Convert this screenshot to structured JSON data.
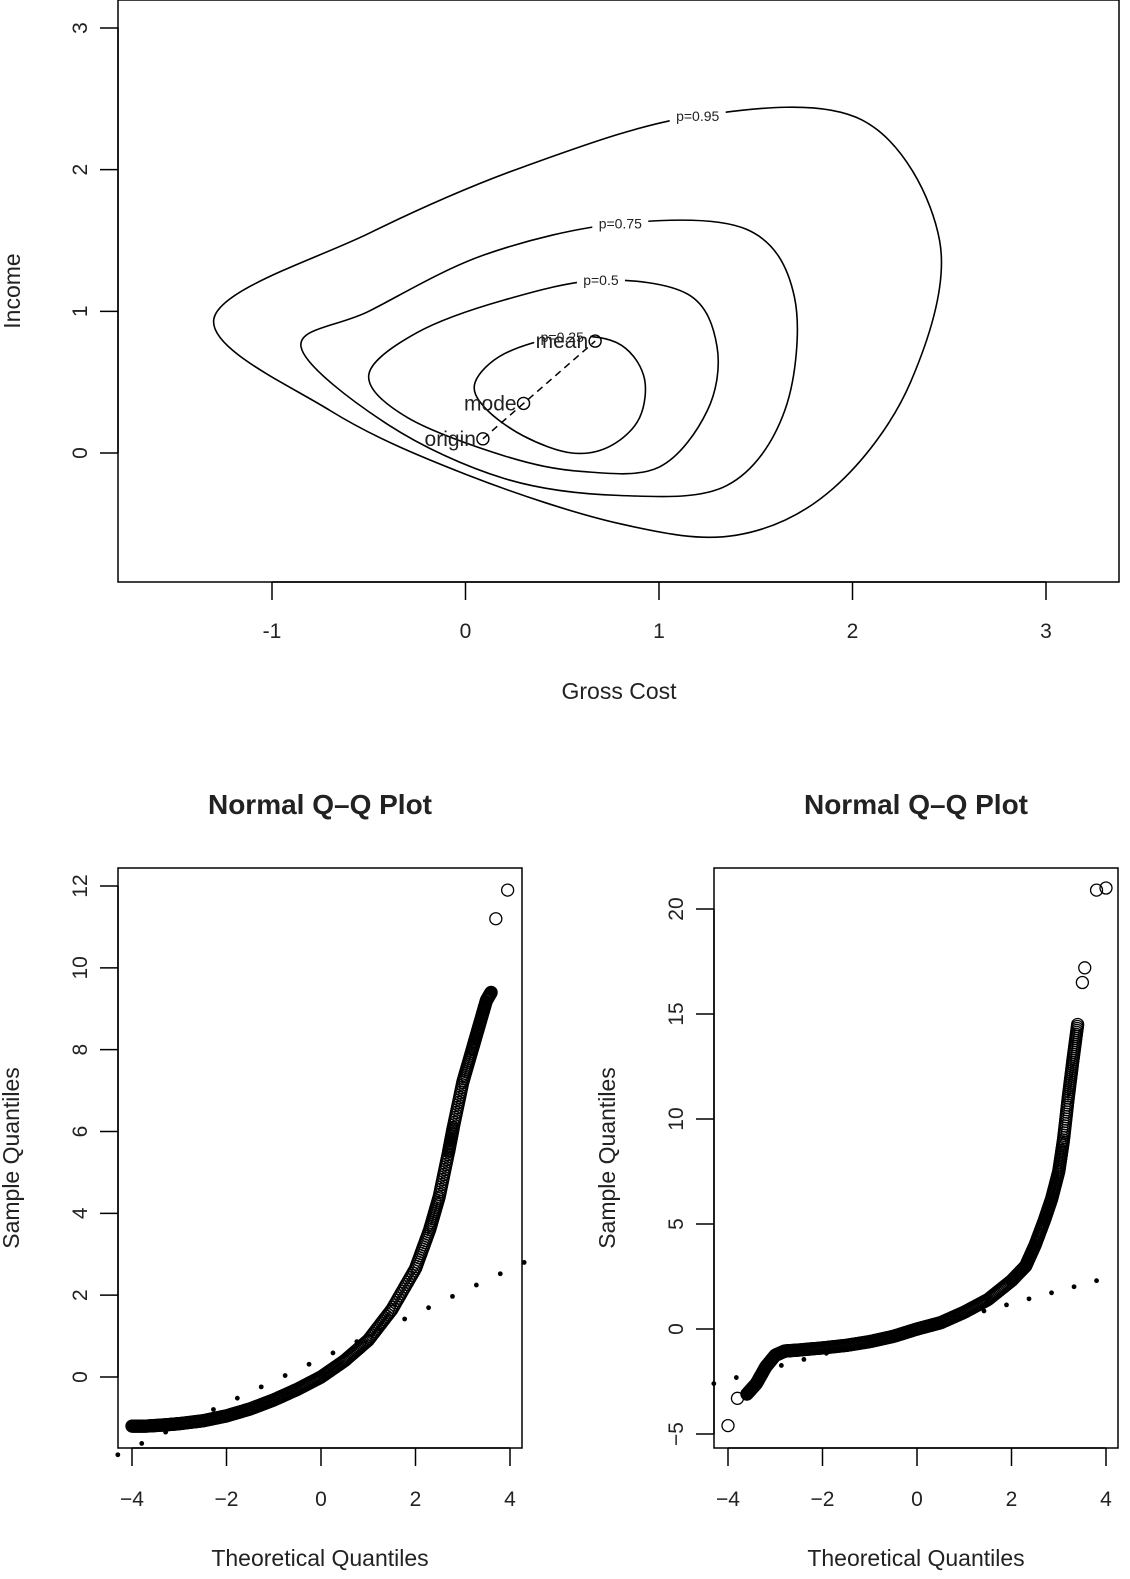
{
  "chart_data": [
    {
      "type": "contour",
      "title": "",
      "xlabel": "Gross Cost",
      "ylabel": "Income",
      "xlim": [
        -1.8,
        3.4
      ],
      "ylim": [
        -0.9,
        3.2
      ],
      "xticks": [
        "-1",
        "0",
        "1",
        "2",
        "3"
      ],
      "yticks": [
        "0",
        "1",
        "2",
        "3"
      ],
      "contours": [
        {
          "label": "p=0.25",
          "points": [
            [
              0.05,
              0.5
            ],
            [
              0.2,
              0.7
            ],
            [
              0.5,
              0.82
            ],
            [
              0.78,
              0.78
            ],
            [
              0.92,
              0.55
            ],
            [
              0.9,
              0.25
            ],
            [
              0.75,
              0.05
            ],
            [
              0.55,
              0.0
            ],
            [
              0.3,
              0.12
            ],
            [
              0.1,
              0.32
            ]
          ]
        },
        {
          "label": "p=0.5",
          "points": [
            [
              -0.5,
              0.55
            ],
            [
              -0.25,
              0.85
            ],
            [
              0.2,
              1.08
            ],
            [
              0.7,
              1.22
            ],
            [
              1.15,
              1.12
            ],
            [
              1.3,
              0.75
            ],
            [
              1.25,
              0.3
            ],
            [
              1.0,
              -0.1
            ],
            [
              0.6,
              -0.13
            ],
            [
              0.2,
              -0.02
            ],
            [
              -0.3,
              0.25
            ]
          ]
        },
        {
          "label": "p=0.75",
          "points": [
            [
              -0.85,
              0.75
            ],
            [
              -0.5,
              1.0
            ],
            [
              0.1,
              1.4
            ],
            [
              0.8,
              1.62
            ],
            [
              1.45,
              1.58
            ],
            [
              1.7,
              1.1
            ],
            [
              1.65,
              0.3
            ],
            [
              1.35,
              -0.23
            ],
            [
              0.8,
              -0.3
            ],
            [
              0.2,
              -0.18
            ],
            [
              -0.4,
              0.2
            ]
          ]
        },
        {
          "label": "p=0.95",
          "points": [
            [
              -1.3,
              0.95
            ],
            [
              -0.5,
              1.55
            ],
            [
              0.3,
              2.02
            ],
            [
              1.2,
              2.38
            ],
            [
              2.05,
              2.35
            ],
            [
              2.45,
              1.5
            ],
            [
              2.3,
              0.5
            ],
            [
              1.9,
              -0.25
            ],
            [
              1.4,
              -0.58
            ],
            [
              0.8,
              -0.5
            ],
            [
              0.0,
              -0.15
            ],
            [
              -0.7,
              0.3
            ]
          ]
        }
      ],
      "points": [
        {
          "label": "mean",
          "x": 0.67,
          "y": 0.79
        },
        {
          "label": "mode",
          "x": 0.3,
          "y": 0.35
        },
        {
          "label": "origin",
          "x": 0.09,
          "y": 0.1
        }
      ],
      "segment": {
        "from": "origin",
        "to": "mean",
        "style": "dashed"
      }
    },
    {
      "type": "scatter",
      "title": "Normal Q–Q Plot",
      "xlabel": "Theoretical Quantiles",
      "ylabel": "Sample Quantiles",
      "xlim": [
        -4.4,
        4.4
      ],
      "ylim": [
        -1.7,
        12.5
      ],
      "xticks": [
        "−4",
        "−2",
        "0",
        "2",
        "4"
      ],
      "yticks": [
        "0",
        "2",
        "4",
        "6",
        "8",
        "10",
        "12"
      ],
      "qq_curve": [
        [
          -4.0,
          -1.2
        ],
        [
          -3.7,
          -1.2
        ],
        [
          -3.3,
          -1.17
        ],
        [
          -3.0,
          -1.14
        ],
        [
          -2.5,
          -1.07
        ],
        [
          -2.0,
          -0.95
        ],
        [
          -1.5,
          -0.78
        ],
        [
          -1.0,
          -0.56
        ],
        [
          -0.5,
          -0.3
        ],
        [
          0.0,
          0.0
        ],
        [
          0.5,
          0.4
        ],
        [
          1.0,
          0.9
        ],
        [
          1.5,
          1.65
        ],
        [
          2.0,
          2.65
        ],
        [
          2.3,
          3.6
        ],
        [
          2.5,
          4.4
        ],
        [
          2.7,
          5.5
        ],
        [
          2.8,
          6.1
        ],
        [
          3.0,
          7.2
        ],
        [
          3.2,
          8.0
        ],
        [
          3.35,
          8.6
        ],
        [
          3.5,
          9.2
        ],
        [
          3.6,
          9.4
        ]
      ],
      "outliers": [
        [
          3.7,
          11.2
        ],
        [
          3.95,
          11.9
        ]
      ],
      "reference_line": [
        [
          -4.3,
          -1.9
        ],
        [
          4.3,
          2.8
        ]
      ]
    },
    {
      "type": "scatter",
      "title": "Normal Q–Q Plot",
      "xlabel": "Theoretical Quantiles",
      "ylabel": "Sample Quantiles",
      "xlim": [
        -4.4,
        4.4
      ],
      "ylim": [
        -5.3,
        22.0
      ],
      "xticks": [
        "−4",
        "−2",
        "0",
        "2",
        "4"
      ],
      "yticks": [
        "−5",
        "0",
        "5",
        "10",
        "15",
        "20"
      ],
      "qq_curve": [
        [
          -3.6,
          -3.1
        ],
        [
          -3.4,
          -2.6
        ],
        [
          -3.2,
          -1.8
        ],
        [
          -3.0,
          -1.25
        ],
        [
          -2.8,
          -1.05
        ],
        [
          -2.5,
          -1.0
        ],
        [
          -2.0,
          -0.9
        ],
        [
          -1.5,
          -0.78
        ],
        [
          -1.0,
          -0.6
        ],
        [
          -0.5,
          -0.35
        ],
        [
          0.0,
          0.0
        ],
        [
          0.5,
          0.3
        ],
        [
          1.0,
          0.8
        ],
        [
          1.5,
          1.4
        ],
        [
          2.0,
          2.3
        ],
        [
          2.3,
          3.0
        ],
        [
          2.5,
          4.0
        ],
        [
          2.7,
          5.2
        ],
        [
          2.85,
          6.2
        ],
        [
          3.0,
          7.5
        ],
        [
          3.1,
          9.0
        ],
        [
          3.2,
          11.0
        ],
        [
          3.3,
          12.8
        ],
        [
          3.4,
          14.5
        ]
      ],
      "outliers": [
        [
          -4.0,
          -4.6
        ],
        [
          -3.8,
          -3.3
        ],
        [
          3.5,
          16.5
        ],
        [
          3.55,
          17.2
        ],
        [
          3.8,
          20.9
        ],
        [
          4.0,
          21.0
        ]
      ],
      "reference_line": [
        [
          -4.3,
          -2.6
        ],
        [
          3.8,
          2.3
        ]
      ]
    }
  ]
}
